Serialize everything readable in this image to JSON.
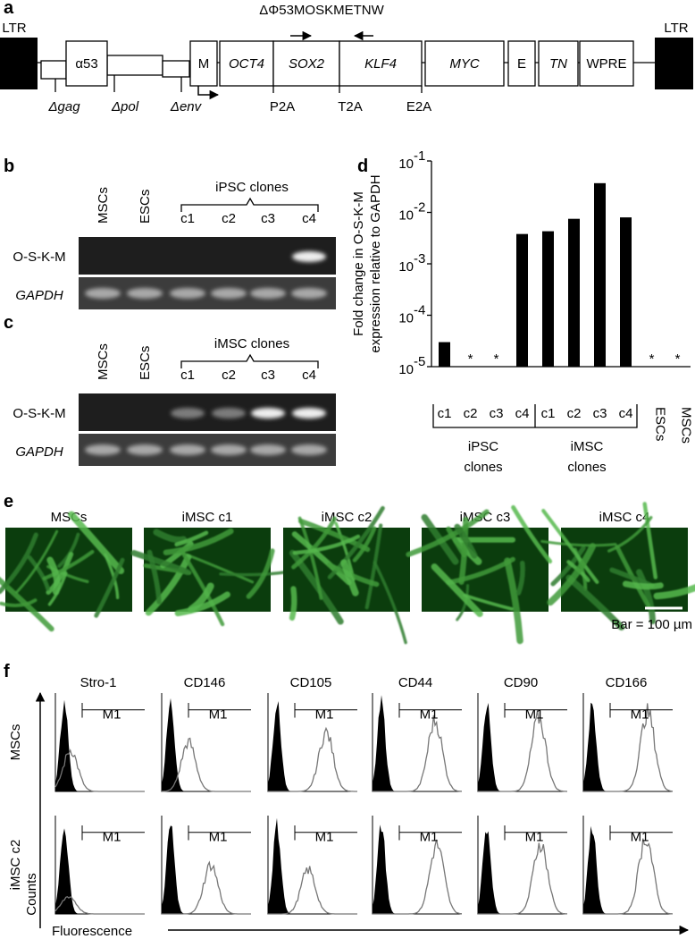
{
  "panel_a": {
    "label": "a",
    "construct": "ΔΦ53MOSKMETNW",
    "ltr_left": "LTR",
    "ltr_right": "LTR",
    "elements": [
      "α53",
      "M",
      "OCT4",
      "SOX2",
      "KLF4",
      "MYC",
      "E",
      "TN",
      "WPRE"
    ],
    "deletions": [
      "Δgag",
      "Δpol",
      "Δenv"
    ],
    "linkers": [
      "P2A",
      "T2A",
      "E2A"
    ]
  },
  "panel_b": {
    "label": "b",
    "lanes": [
      "MSCs",
      "ESCs",
      "c1",
      "c2",
      "c3",
      "c4"
    ],
    "group": "iPSC clones",
    "rows": [
      "O-S-K-M",
      "GAPDH"
    ]
  },
  "panel_c": {
    "label": "c",
    "lanes": [
      "MSCs",
      "ESCs",
      "c1",
      "c2",
      "c3",
      "c4"
    ],
    "group": "iMSC clones",
    "rows": [
      "O-S-K-M",
      "GAPDH"
    ]
  },
  "chart_data": {
    "type": "bar",
    "panel_label": "d",
    "y_label": [
      "Fold change in O-S-K-M",
      "expression relative to GAPDH"
    ],
    "categories": [
      "c1",
      "c2",
      "c3",
      "c4",
      "c1",
      "c2",
      "c3",
      "c4",
      "ESCs",
      "MSCs"
    ],
    "values": [
      3e-05,
      null,
      null,
      0.0038,
      0.0043,
      0.0075,
      0.037,
      0.008,
      null,
      null
    ],
    "value_labels": [
      null,
      "*",
      "*",
      null,
      null,
      null,
      null,
      null,
      "*",
      "*"
    ],
    "group_labels": [
      [
        "iPSC",
        "clones"
      ],
      [
        "iMSC",
        "clones"
      ]
    ],
    "color": "#000000",
    "log_scale": true,
    "ylim": [
      1e-05,
      0.1
    ],
    "yticks": [
      {
        "value": 1e-05,
        "label": "10",
        "exponent": "-5"
      },
      {
        "value": 0.0001,
        "label": "10",
        "exponent": "-4"
      },
      {
        "value": 0.001,
        "label": "10",
        "exponent": "-3"
      },
      {
        "value": 0.01,
        "label": "10",
        "exponent": "-2"
      },
      {
        "value": 0.1,
        "label": "10",
        "exponent": "-1"
      }
    ]
  },
  "panel_e": {
    "label": "e",
    "images": [
      "MSCs",
      "iMSC c1",
      "iMSC c2",
      "iMSC c3",
      "iMSC c4"
    ],
    "scale": "Bar = 100 µm"
  },
  "panel_f": {
    "label": "f",
    "markers": [
      "Stro-1",
      "CD146",
      "CD105",
      "CD44",
      "CD90",
      "CD166"
    ],
    "rows": [
      "MSCs",
      "iMSC c2"
    ],
    "gate": "M1",
    "y_axis": "Counts",
    "x_axis": "Fluorescence"
  }
}
